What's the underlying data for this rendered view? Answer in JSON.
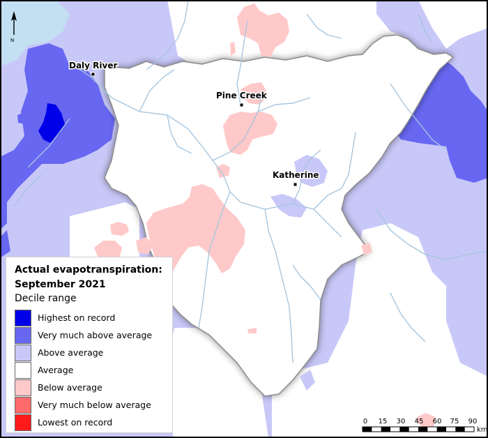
{
  "map": {
    "places": [
      {
        "name": "Daly River"
      },
      {
        "name": "Pine Creek"
      },
      {
        "name": "Katherine"
      }
    ],
    "north_label": "N",
    "scale_bar": {
      "ticks": [
        "0",
        "15",
        "30",
        "45",
        "60",
        "75",
        "90"
      ],
      "unit": "km"
    }
  },
  "legend": {
    "title_line1": "Actual evapotranspiration:",
    "title_line2": "September 2021",
    "subtitle": "Decile range",
    "items": [
      {
        "label": "Highest on record",
        "color": "#0000e8"
      },
      {
        "label": "Very much above average",
        "color": "#6767f2"
      },
      {
        "label": "Above average",
        "color": "#c8c8f8"
      },
      {
        "label": "Average",
        "color": "#ffffff"
      },
      {
        "label": "Below average",
        "color": "#ffc9c9"
      },
      {
        "label": "Very much below average",
        "color": "#ff6a6a"
      },
      {
        "label": "Lowest on record",
        "color": "#ff1a1a"
      }
    ]
  },
  "colors": {
    "sea": "#c3e0f3",
    "river": "#a7c6de",
    "catchment_outline": "#8a8a8a"
  }
}
